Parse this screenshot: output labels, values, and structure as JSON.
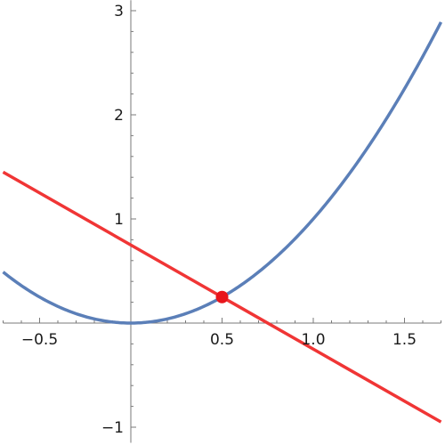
{
  "chart_data": {
    "type": "line",
    "title": "",
    "xlabel": "",
    "ylabel": "",
    "xlim": [
      -0.7,
      1.7
    ],
    "ylim": [
      -1.15,
      3.1
    ],
    "grid": false,
    "x_ticks": [
      {
        "value": -0.5,
        "label": "−0.5"
      },
      {
        "value": 0.5,
        "label": "0.5"
      },
      {
        "value": 1.0,
        "label": "1.0"
      },
      {
        "value": 1.5,
        "label": "1.5"
      }
    ],
    "y_ticks": [
      {
        "value": -1,
        "label": "−1"
      },
      {
        "value": 1,
        "label": "1"
      },
      {
        "value": 2,
        "label": "2"
      },
      {
        "value": 3,
        "label": "3"
      }
    ],
    "series": [
      {
        "color": "#5b7fb8",
        "x": [
          -0.7,
          -0.6,
          -0.5,
          -0.4,
          -0.3,
          -0.2,
          -0.1,
          0,
          0.1,
          0.2,
          0.3,
          0.4,
          0.5,
          0.6,
          0.7,
          0.8,
          0.9,
          1.0,
          1.1,
          1.2,
          1.3,
          1.4,
          1.5,
          1.6,
          1.7
        ],
        "y": [
          0.49,
          0.36,
          0.25,
          0.16,
          0.09,
          0.04,
          0.01,
          0,
          0.01,
          0.04,
          0.09,
          0.16,
          0.25,
          0.36,
          0.49,
          0.64,
          0.81,
          1.0,
          1.21,
          1.44,
          1.69,
          1.96,
          2.25,
          2.56,
          2.89
        ]
      },
      {
        "color": "#f03535",
        "x": [
          -0.7,
          1.7
        ],
        "y": [
          1.45,
          -0.95
        ]
      }
    ],
    "points": [
      {
        "x": 0.5,
        "y": 0.25,
        "color": "#e8151c"
      }
    ]
  }
}
